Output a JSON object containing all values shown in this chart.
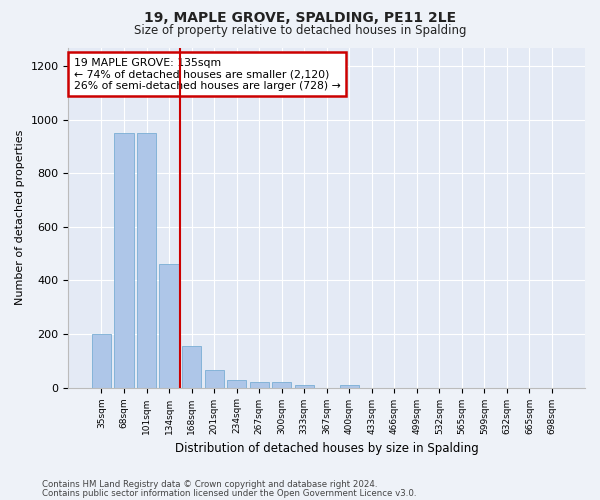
{
  "title1": "19, MAPLE GROVE, SPALDING, PE11 2LE",
  "title2": "Size of property relative to detached houses in Spalding",
  "xlabel": "Distribution of detached houses by size in Spalding",
  "ylabel": "Number of detached properties",
  "categories": [
    "35sqm",
    "68sqm",
    "101sqm",
    "134sqm",
    "168sqm",
    "201sqm",
    "234sqm",
    "267sqm",
    "300sqm",
    "333sqm",
    "367sqm",
    "400sqm",
    "433sqm",
    "466sqm",
    "499sqm",
    "532sqm",
    "565sqm",
    "599sqm",
    "632sqm",
    "665sqm",
    "698sqm"
  ],
  "values": [
    200,
    950,
    950,
    460,
    155,
    65,
    30,
    20,
    20,
    10,
    0,
    8,
    0,
    0,
    0,
    0,
    0,
    0,
    0,
    0,
    0
  ],
  "bar_color": "#aec6e8",
  "bar_edge_color": "#7aaed4",
  "vline_color": "#cc0000",
  "vline_x_index": 3.5,
  "annotation_text": "19 MAPLE GROVE: 135sqm\n← 74% of detached houses are smaller (2,120)\n26% of semi-detached houses are larger (728) →",
  "annotation_box_color": "#ffffff",
  "annotation_box_edge": "#cc0000",
  "ylim": [
    0,
    1270
  ],
  "yticks": [
    0,
    200,
    400,
    600,
    800,
    1000,
    1200
  ],
  "footer1": "Contains HM Land Registry data © Crown copyright and database right 2024.",
  "footer2": "Contains public sector information licensed under the Open Government Licence v3.0.",
  "bg_color": "#eef2f8",
  "plot_bg_color": "#e4eaf5"
}
